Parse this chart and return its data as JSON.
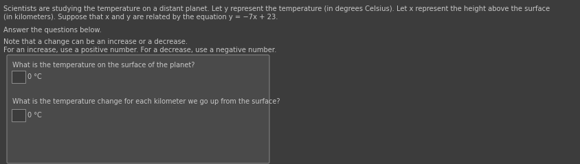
{
  "background_color": "#3c3c3c",
  "text_color": "#c8c8c8",
  "box_bg_color": "#4a4a4a",
  "box_edge_color": "#808080",
  "input_box_color": "#3c3c3c",
  "input_box_edge": "#909090",
  "line1": "Scientists are studying the temperature on a distant planet. Let y represent the temperature (in degrees Celsius). Let x represent the height above the surface",
  "line2": "(in kilometers). Suppose that x and y are related by the equation y = −7x + 23.",
  "line3": "Answer the questions below.",
  "line4": "Note that a change can be an increase or a decrease.",
  "line5": "For an increase, use a positive number. For a decrease, use a negative number.",
  "box1_question": "What is the temperature on the surface of the planet?",
  "box1_answer": "0 °C",
  "box2_question": "What is the temperature change for each kilometer we go up from the surface?",
  "box2_answer": "0 °C",
  "font_size_para": 7.2,
  "font_size_box": 7.0
}
